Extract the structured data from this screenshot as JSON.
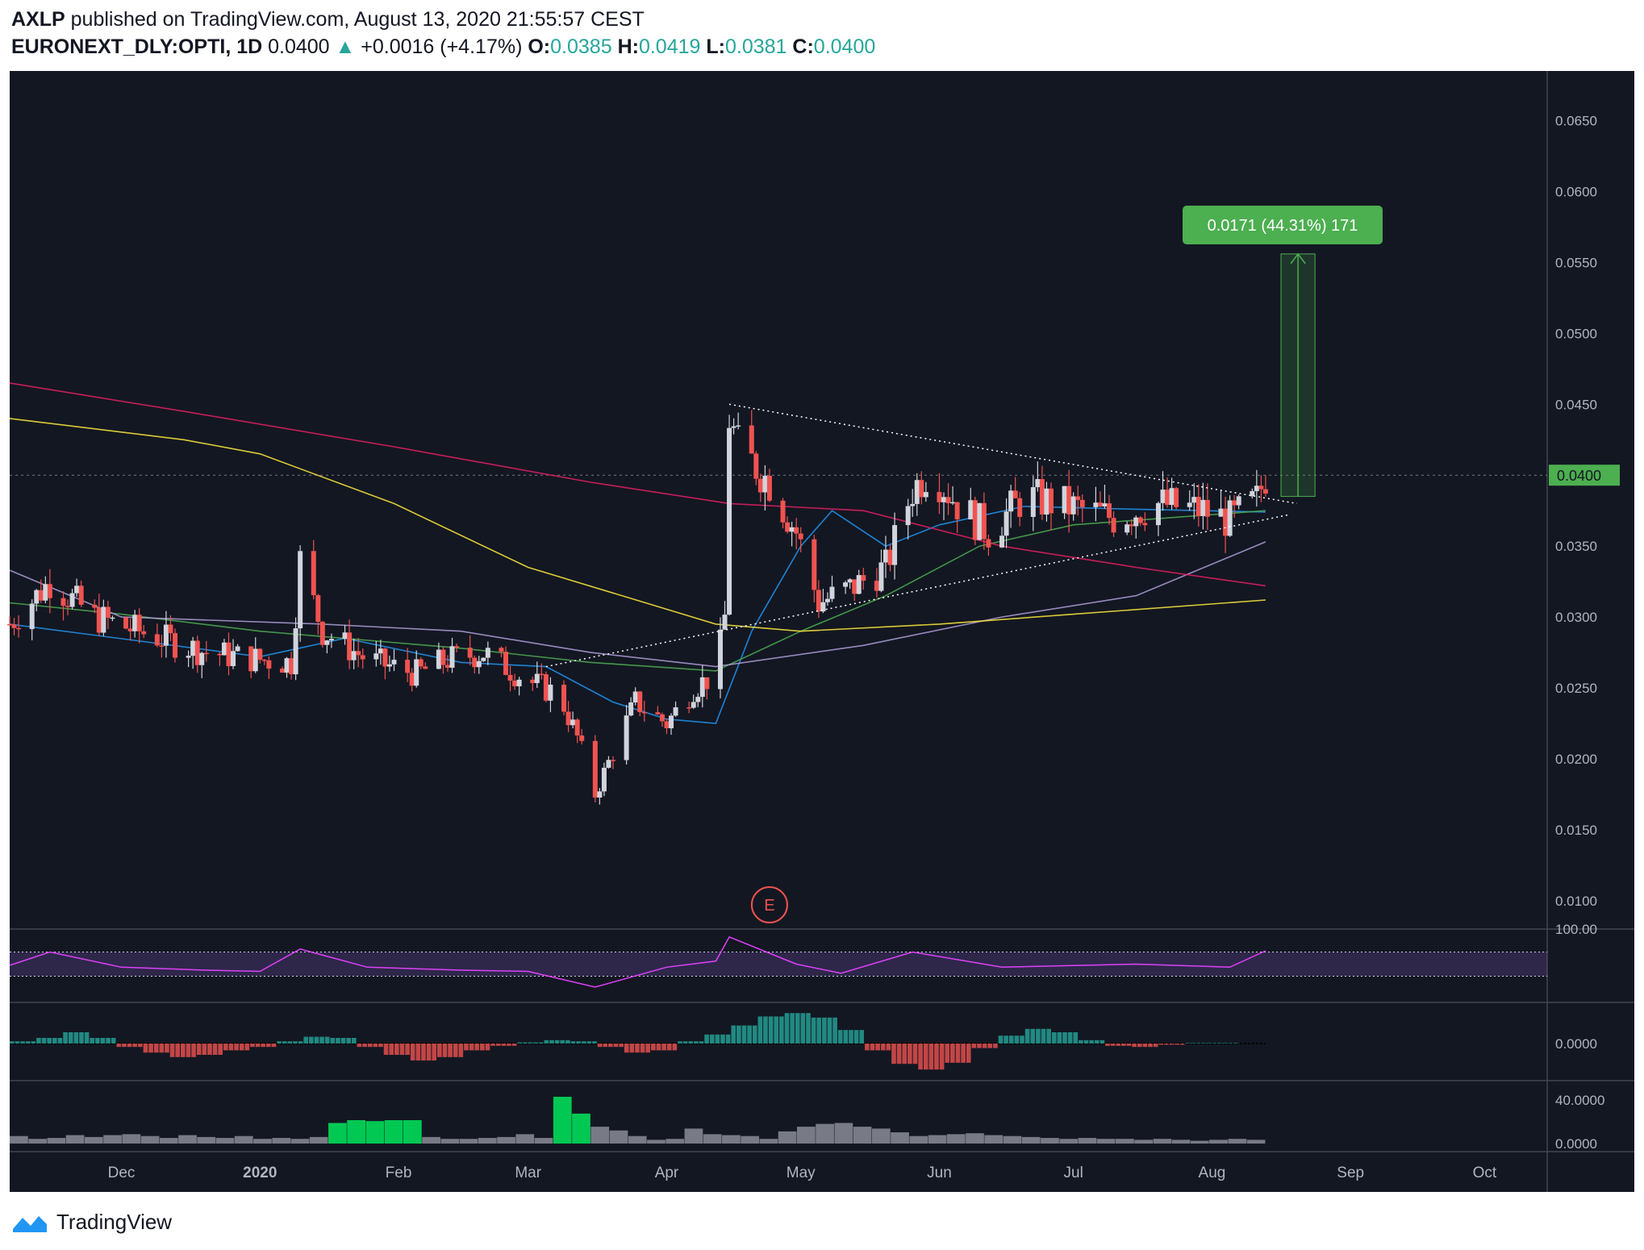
{
  "header": {
    "user": "AXLP",
    "published": "published on TradingView.com, August 13, 2020 21:55:57 CEST",
    "symbol": "EURONEXT_DLY:OPTI, 1D",
    "last": "0.0400",
    "change": "+0.0016 (+4.17%)",
    "o_label": "O:",
    "o": "0.0385",
    "h_label": "H:",
    "h": "0.0419",
    "l_label": "L:",
    "l": "0.0381",
    "c_label": "C:",
    "c": "0.0400"
  },
  "footer": {
    "brand": "TradingView"
  },
  "colors": {
    "background": "#131722",
    "up": "#d1d4dc",
    "down": "#ef5350",
    "ma_fast": "#2196f3",
    "ma_mid": "#4caf50",
    "ma_slow": "#b39ddb",
    "ma_200": "#e91e63",
    "ma_yellow": "#ffeb3b",
    "rsi": "#e040fb",
    "measure": "#4caf50",
    "earnings": "#ef5350"
  },
  "chart_data": {
    "type": "candlestick",
    "title": "EURONEXT_DLY:OPTI, 1D",
    "x_labels": [
      "Dec",
      "2020",
      "Feb",
      "Mar",
      "Apr",
      "May",
      "Jun",
      "Jul",
      "Aug",
      "Sep",
      "Oct"
    ],
    "x_start": "2019-11-06",
    "x_end": "2020-10-15",
    "price_axis": {
      "ylim": [
        0.008,
        0.0685
      ],
      "ticks": [
        "0.0100",
        "0.0150",
        "0.0200",
        "0.0250",
        "0.0300",
        "0.0350",
        "0.0400",
        "0.0450",
        "0.0500",
        "0.0550",
        "0.0600",
        "0.0650"
      ],
      "last_price_label": "0.0400",
      "last_price": 0.04
    },
    "price_path": [
      [
        "2019-11-06",
        0.0295
      ],
      [
        "2019-11-15",
        0.0325
      ],
      [
        "2019-11-25",
        0.03
      ],
      [
        "2019-12-05",
        0.029
      ],
      [
        "2019-12-20",
        0.0275
      ],
      [
        "2020-01-01",
        0.027
      ],
      [
        "2020-01-08",
        0.0268
      ],
      [
        "2020-01-10",
        0.034
      ],
      [
        "2020-01-15",
        0.029
      ],
      [
        "2020-01-25",
        0.027
      ],
      [
        "2020-02-05",
        0.026
      ],
      [
        "2020-02-12",
        0.027
      ],
      [
        "2020-02-20",
        0.0275
      ],
      [
        "2020-03-01",
        0.0255
      ],
      [
        "2020-03-08",
        0.0245
      ],
      [
        "2020-03-12",
        0.0215
      ],
      [
        "2020-03-16",
        0.0175
      ],
      [
        "2020-03-20",
        0.0205
      ],
      [
        "2020-03-25",
        0.024
      ],
      [
        "2020-04-01",
        0.0225
      ],
      [
        "2020-04-07",
        0.025
      ],
      [
        "2020-04-12",
        0.026
      ],
      [
        "2020-04-14",
        0.03
      ],
      [
        "2020-04-15",
        0.044
      ],
      [
        "2020-04-17",
        0.042
      ],
      [
        "2020-04-24",
        0.0395
      ],
      [
        "2020-04-30",
        0.036
      ],
      [
        "2020-05-05",
        0.031
      ],
      [
        "2020-05-12",
        0.032
      ],
      [
        "2020-05-20",
        0.0335
      ],
      [
        "2020-05-26",
        0.039
      ],
      [
        "2020-05-30",
        0.0405
      ],
      [
        "2020-06-05",
        0.038
      ],
      [
        "2020-06-12",
        0.036
      ],
      [
        "2020-06-20",
        0.0385
      ],
      [
        "2020-06-30",
        0.0378
      ],
      [
        "2020-07-10",
        0.037
      ],
      [
        "2020-07-20",
        0.038
      ],
      [
        "2020-07-30",
        0.0375
      ],
      [
        "2020-08-05",
        0.0368
      ],
      [
        "2020-08-11",
        0.0382
      ],
      [
        "2020-08-13",
        0.04
      ]
    ],
    "moving_averages": [
      {
        "color_key": "ma_fast",
        "points": [
          [
            "2019-11-06",
            0.0295
          ],
          [
            "2020-01-01",
            0.0272
          ],
          [
            "2020-01-20",
            0.0285
          ],
          [
            "2020-02-15",
            0.0268
          ],
          [
            "2020-03-05",
            0.0265
          ],
          [
            "2020-03-20",
            0.024
          ],
          [
            "2020-04-01",
            0.0228
          ],
          [
            "2020-04-12",
            0.0225
          ],
          [
            "2020-04-20",
            0.029
          ],
          [
            "2020-05-01",
            0.035
          ],
          [
            "2020-05-08",
            0.0375
          ],
          [
            "2020-05-20",
            0.035
          ],
          [
            "2020-06-01",
            0.0365
          ],
          [
            "2020-06-20",
            0.0378
          ],
          [
            "2020-07-15",
            0.0376
          ],
          [
            "2020-08-13",
            0.0374
          ]
        ]
      },
      {
        "color_key": "ma_mid",
        "points": [
          [
            "2019-11-06",
            0.031
          ],
          [
            "2019-12-01",
            0.0302
          ],
          [
            "2020-01-01",
            0.029
          ],
          [
            "2020-02-15",
            0.0278
          ],
          [
            "2020-03-15",
            0.0268
          ],
          [
            "2020-04-12",
            0.0262
          ],
          [
            "2020-05-01",
            0.029
          ],
          [
            "2020-05-20",
            0.0315
          ],
          [
            "2020-06-10",
            0.035
          ],
          [
            "2020-07-01",
            0.0365
          ],
          [
            "2020-08-13",
            0.0375
          ]
        ]
      },
      {
        "color_key": "ma_slow",
        "points": [
          [
            "2019-11-06",
            0.0333
          ],
          [
            "2019-12-01",
            0.03
          ],
          [
            "2020-01-15",
            0.0295
          ],
          [
            "2020-02-15",
            0.029
          ],
          [
            "2020-03-15",
            0.0275
          ],
          [
            "2020-04-12",
            0.0265
          ],
          [
            "2020-05-15",
            0.028
          ],
          [
            "2020-06-15",
            0.03
          ],
          [
            "2020-07-15",
            0.0315
          ],
          [
            "2020-08-13",
            0.0353
          ]
        ]
      },
      {
        "color_key": "ma_200",
        "points": [
          [
            "2019-11-06",
            0.0465
          ],
          [
            "2019-12-15",
            0.0445
          ],
          [
            "2020-01-31",
            0.042
          ],
          [
            "2020-03-15",
            0.0395
          ],
          [
            "2020-04-15",
            0.038
          ],
          [
            "2020-05-15",
            0.0375
          ],
          [
            "2020-06-15",
            0.035
          ],
          [
            "2020-07-15",
            0.0335
          ],
          [
            "2020-08-13",
            0.0322
          ]
        ]
      },
      {
        "color_key": "ma_yellow",
        "points": [
          [
            "2019-11-06",
            0.044
          ],
          [
            "2019-12-15",
            0.0425
          ],
          [
            "2020-01-01",
            0.0415
          ],
          [
            "2020-01-31",
            0.038
          ],
          [
            "2020-03-01",
            0.0335
          ],
          [
            "2020-04-12",
            0.0295
          ],
          [
            "2020-05-01",
            0.029
          ],
          [
            "2020-06-01",
            0.0295
          ],
          [
            "2020-07-01",
            0.0302
          ],
          [
            "2020-08-13",
            0.0312
          ]
        ]
      }
    ],
    "trendlines": [
      {
        "from": [
          "2020-04-15",
          0.045
        ],
        "to": [
          "2020-08-20",
          0.038
        ]
      },
      {
        "from": [
          "2020-03-05",
          0.0265
        ],
        "to": [
          "2020-08-18",
          0.0372
        ]
      }
    ],
    "measure": {
      "label": "0.0171 (44.31%) 171",
      "from_price": 0.0385,
      "to_price": 0.0556,
      "from_date": "2020-08-15",
      "to_date": "2020-08-19"
    },
    "earnings_marker": {
      "label": "E",
      "date": "2020-04-24"
    },
    "rsi": {
      "tick": "100.00",
      "upper": 70,
      "lower": 30,
      "points": [
        [
          "2019-11-06",
          48
        ],
        [
          "2019-11-15",
          70
        ],
        [
          "2019-12-01",
          45
        ],
        [
          "2019-12-20",
          40
        ],
        [
          "2020-01-01",
          38
        ],
        [
          "2020-01-10",
          75
        ],
        [
          "2020-01-25",
          45
        ],
        [
          "2020-02-15",
          40
        ],
        [
          "2020-03-01",
          38
        ],
        [
          "2020-03-16",
          12
        ],
        [
          "2020-04-01",
          45
        ],
        [
          "2020-04-12",
          55
        ],
        [
          "2020-04-15",
          95
        ],
        [
          "2020-04-30",
          50
        ],
        [
          "2020-05-10",
          35
        ],
        [
          "2020-05-26",
          70
        ],
        [
          "2020-06-15",
          45
        ],
        [
          "2020-07-15",
          50
        ],
        [
          "2020-08-05",
          45
        ],
        [
          "2020-08-13",
          72
        ]
      ]
    },
    "histogram": {
      "tick": "0.0000",
      "values": [
        0.2,
        0.5,
        1.0,
        0.5,
        -0.3,
        -0.8,
        -1.2,
        -1.0,
        -0.6,
        -0.3,
        0.2,
        0.6,
        0.5,
        -0.3,
        -1.0,
        -1.5,
        -1.2,
        -0.6,
        -0.2,
        0.1,
        0.3,
        0.2,
        -0.3,
        -0.8,
        -0.6,
        0.2,
        0.8,
        1.6,
        2.4,
        2.7,
        2.3,
        1.2,
        -0.6,
        -1.8,
        -2.3,
        -1.7,
        -0.4,
        0.7,
        1.3,
        1.0,
        0.3,
        -0.2,
        -0.3,
        -0.1,
        0.05,
        0.05,
        0.0
      ]
    },
    "volume": {
      "ticks": [
        "40.0000",
        "0.0000"
      ],
      "values": [
        8,
        5,
        6,
        9,
        7,
        9,
        10,
        8,
        6,
        9,
        7,
        6,
        8,
        5,
        6,
        5,
        7,
        22,
        25,
        24,
        25,
        25,
        7,
        5,
        5,
        6,
        7,
        10,
        6,
        50,
        32,
        18,
        14,
        8,
        4,
        5,
        16,
        10,
        9,
        8,
        5,
        13,
        18,
        21,
        22,
        18,
        16,
        12,
        8,
        9,
        10,
        11,
        9,
        8,
        7,
        6,
        5,
        6,
        5,
        5,
        4,
        5,
        4,
        3,
        4,
        5,
        4
      ],
      "green_ranges": [
        [
          17,
          21
        ],
        [
          29,
          30
        ]
      ]
    }
  }
}
